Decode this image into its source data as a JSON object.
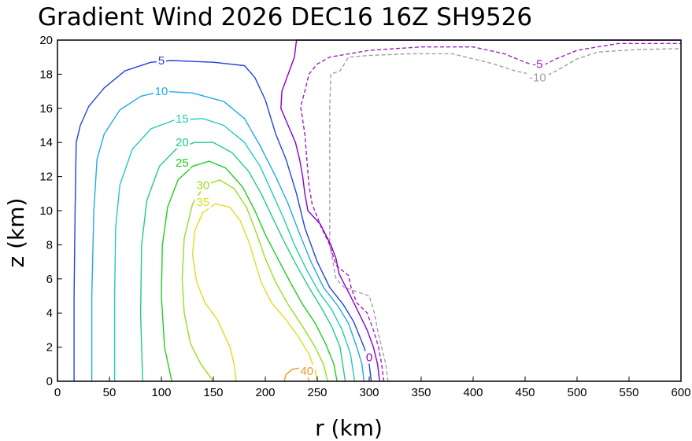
{
  "chart_data": {
    "type": "contour",
    "title": "Gradient Wind 2026 DEC16 16Z  SH9526",
    "xlabel": "r (km)",
    "ylabel": "z (km)",
    "xlim": [
      0,
      600
    ],
    "ylim": [
      0,
      20
    ],
    "xticks": [
      0,
      50,
      100,
      150,
      200,
      250,
      300,
      350,
      400,
      450,
      500,
      550,
      600
    ],
    "yticks": [
      0,
      2,
      4,
      6,
      8,
      10,
      12,
      14,
      16,
      18,
      20
    ],
    "grid": false,
    "legend": "none",
    "contours": [
      {
        "level": -10,
        "label": "-10",
        "color": "#a0a0a0",
        "dashed": true,
        "points": [
          [
            318,
            0
          ],
          [
            316,
            1
          ],
          [
            312,
            2
          ],
          [
            308,
            3
          ],
          [
            305,
            4
          ],
          [
            300,
            5
          ],
          [
            276,
            5.5
          ],
          [
            268,
            6
          ],
          [
            265,
            7
          ],
          [
            262,
            8
          ],
          [
            262,
            10
          ],
          [
            262,
            12
          ],
          [
            262,
            14
          ],
          [
            262,
            16
          ],
          [
            263,
            18
          ],
          [
            272,
            18.2
          ],
          [
            280,
            19
          ],
          [
            300,
            19.1
          ],
          [
            340,
            19.2
          ],
          [
            380,
            19.2
          ],
          [
            400,
            18.9
          ],
          [
            420,
            18.6
          ],
          [
            440,
            18.2
          ],
          [
            455,
            18.0
          ],
          [
            465,
            17.8
          ],
          [
            470,
            17.9
          ],
          [
            480,
            18.2
          ],
          [
            500,
            18.9
          ],
          [
            520,
            19.3
          ],
          [
            560,
            19.45
          ],
          [
            600,
            19.5
          ]
        ]
      },
      {
        "level": -5,
        "label": "-5",
        "color": "#a020c0",
        "dashed": true,
        "points": [
          [
            314,
            0
          ],
          [
            312,
            1
          ],
          [
            309,
            2
          ],
          [
            304,
            3
          ],
          [
            298,
            4
          ],
          [
            288,
            4.6
          ],
          [
            283,
            5.4
          ],
          [
            280,
            6.2
          ],
          [
            268,
            6.8
          ],
          [
            262,
            8
          ],
          [
            254,
            9
          ],
          [
            245,
            10.4
          ],
          [
            242,
            11.5
          ],
          [
            240,
            13
          ],
          [
            238,
            14.5
          ],
          [
            234,
            16.1
          ],
          [
            238,
            17
          ],
          [
            242,
            18
          ],
          [
            250,
            18.6
          ],
          [
            262,
            19.0
          ],
          [
            300,
            19.4
          ],
          [
            350,
            19.6
          ],
          [
            400,
            19.6
          ],
          [
            430,
            19.2
          ],
          [
            450,
            18.7
          ],
          [
            460,
            18.5
          ],
          [
            470,
            18.6
          ],
          [
            480,
            18.9
          ],
          [
            500,
            19.4
          ],
          [
            540,
            19.8
          ],
          [
            600,
            19.8
          ]
        ]
      },
      {
        "level": 0,
        "label": "0",
        "color": "#8800cc",
        "dashed": false,
        "points": [
          [
            310,
            0
          ],
          [
            308,
            1
          ],
          [
            304,
            2
          ],
          [
            298,
            3
          ],
          [
            290,
            4
          ],
          [
            282,
            5
          ],
          [
            276,
            5.7
          ],
          [
            271,
            6.3
          ],
          [
            268,
            7.2
          ],
          [
            263,
            8
          ],
          [
            253,
            9.2
          ],
          [
            241,
            10
          ],
          [
            238,
            11
          ],
          [
            236,
            12
          ],
          [
            233,
            13
          ],
          [
            229,
            14
          ],
          [
            222,
            15
          ],
          [
            215,
            16
          ],
          [
            216,
            17
          ],
          [
            222,
            18
          ],
          [
            228,
            19
          ],
          [
            230,
            20
          ],
          [
            300,
            20
          ],
          [
            400,
            20
          ],
          [
            500,
            20
          ],
          [
            600,
            20
          ]
        ]
      },
      {
        "level": 5,
        "label": "5",
        "color": "#2244dd",
        "dashed": false,
        "points": [
          [
            16,
            0
          ],
          [
            16,
            5
          ],
          [
            17,
            10
          ],
          [
            18,
            14
          ],
          [
            22,
            15
          ],
          [
            30,
            16.1
          ],
          [
            45,
            17.2
          ],
          [
            65,
            18.2
          ],
          [
            90,
            18.7
          ],
          [
            110,
            18.8
          ],
          [
            150,
            18.7
          ],
          [
            180,
            18.5
          ],
          [
            190,
            17.8
          ],
          [
            200,
            16.5
          ],
          [
            210,
            14.5
          ],
          [
            220,
            13
          ],
          [
            230,
            11
          ],
          [
            238,
            9
          ],
          [
            250,
            7
          ],
          [
            262,
            5.5
          ],
          [
            275,
            4.5
          ],
          [
            285,
            3.5
          ],
          [
            295,
            2
          ],
          [
            300,
            1
          ],
          [
            302,
            0
          ]
        ]
      },
      {
        "level": 10,
        "label": "10",
        "color": "#22a8ee",
        "dashed": false,
        "points": [
          [
            33,
            0
          ],
          [
            33,
            5
          ],
          [
            35,
            10
          ],
          [
            38,
            13
          ],
          [
            45,
            14.5
          ],
          [
            60,
            15.9
          ],
          [
            80,
            16.7
          ],
          [
            100,
            17.0
          ],
          [
            130,
            16.9
          ],
          [
            160,
            16.4
          ],
          [
            180,
            15.4
          ],
          [
            195,
            13.8
          ],
          [
            210,
            12
          ],
          [
            222,
            10.4
          ],
          [
            232,
            8.8
          ],
          [
            244,
            7
          ],
          [
            256,
            5.5
          ],
          [
            270,
            4.4
          ],
          [
            280,
            3.4
          ],
          [
            288,
            2
          ],
          [
            293,
            1
          ],
          [
            295,
            0
          ]
        ]
      },
      {
        "level": 15,
        "label": "15",
        "color": "#22ccbb",
        "dashed": false,
        "points": [
          [
            55,
            0
          ],
          [
            55,
            5
          ],
          [
            56,
            9
          ],
          [
            60,
            11.5
          ],
          [
            72,
            13.6
          ],
          [
            90,
            14.8
          ],
          [
            112,
            15.3
          ],
          [
            140,
            15.4
          ],
          [
            160,
            15.0
          ],
          [
            180,
            14.0
          ],
          [
            195,
            12.6
          ],
          [
            207,
            11
          ],
          [
            218,
            9.5
          ],
          [
            228,
            8
          ],
          [
            240,
            6.5
          ],
          [
            252,
            5.2
          ],
          [
            264,
            4.2
          ],
          [
            274,
            3
          ],
          [
            282,
            1.6
          ],
          [
            286,
            0
          ]
        ]
      },
      {
        "level": 20,
        "label": "20",
        "color": "#22cc88",
        "dashed": false,
        "points": [
          [
            82,
            0
          ],
          [
            80,
            4
          ],
          [
            81,
            8
          ],
          [
            86,
            10.6
          ],
          [
            98,
            12.6
          ],
          [
            114,
            13.6
          ],
          [
            132,
            14.0
          ],
          [
            150,
            14.0
          ],
          [
            168,
            13.4
          ],
          [
            184,
            12.3
          ],
          [
            196,
            11
          ],
          [
            207,
            9.6
          ],
          [
            218,
            8.2
          ],
          [
            230,
            6.8
          ],
          [
            242,
            5.5
          ],
          [
            254,
            4.3
          ],
          [
            264,
            3.2
          ],
          [
            272,
            2
          ],
          [
            277,
            0
          ]
        ]
      },
      {
        "level": 25,
        "label": "25",
        "color": "#22cc22",
        "dashed": false,
        "points": [
          [
            110,
            0
          ],
          [
            103,
            2
          ],
          [
            100,
            5
          ],
          [
            101,
            8
          ],
          [
            106,
            10.2
          ],
          [
            116,
            11.8
          ],
          [
            130,
            12.6
          ],
          [
            146,
            12.9
          ],
          [
            162,
            12.5
          ],
          [
            178,
            11.4
          ],
          [
            190,
            10
          ],
          [
            200,
            8.6
          ],
          [
            212,
            7.2
          ],
          [
            224,
            5.8
          ],
          [
            236,
            4.5
          ],
          [
            248,
            3.4
          ],
          [
            258,
            2.2
          ],
          [
            266,
            1
          ],
          [
            269,
            0
          ]
        ]
      },
      {
        "level": 30,
        "label": "30",
        "color": "#99dd22",
        "dashed": false,
        "points": [
          [
            150,
            0
          ],
          [
            138,
            1
          ],
          [
            128,
            2.2
          ],
          [
            122,
            4
          ],
          [
            120,
            6
          ],
          [
            122,
            8.4
          ],
          [
            130,
            10.4
          ],
          [
            142,
            11.5
          ],
          [
            156,
            11.8
          ],
          [
            170,
            11.3
          ],
          [
            182,
            10.2
          ],
          [
            192,
            8.6
          ],
          [
            200,
            7.2
          ],
          [
            210,
            5.8
          ],
          [
            222,
            4.5
          ],
          [
            236,
            3.2
          ],
          [
            248,
            2
          ],
          [
            256,
            1
          ],
          [
            260,
            0
          ]
        ]
      },
      {
        "level": 35,
        "label": "35",
        "color": "#dddd22",
        "dashed": false,
        "points": [
          [
            172,
            0
          ],
          [
            170,
            1
          ],
          [
            166,
            2
          ],
          [
            154,
            3.6
          ],
          [
            142,
            4.6
          ],
          [
            134,
            5.8
          ],
          [
            130,
            7.4
          ],
          [
            132,
            8.8
          ],
          [
            140,
            9.9
          ],
          [
            152,
            10.4
          ],
          [
            166,
            10.2
          ],
          [
            176,
            9.4
          ],
          [
            184,
            8.2
          ],
          [
            190,
            7
          ],
          [
            196,
            5.8
          ],
          [
            206,
            4.6
          ],
          [
            220,
            3.6
          ],
          [
            232,
            2.6
          ],
          [
            242,
            1.6
          ],
          [
            248,
            0.6
          ],
          [
            250,
            0
          ]
        ]
      },
      {
        "level": 40,
        "label": "40",
        "color": "#ee9922",
        "dashed": false,
        "points": [
          [
            218,
            0
          ],
          [
            220,
            0.4
          ],
          [
            226,
            0.7
          ],
          [
            235,
            0.8
          ],
          [
            240,
            0.5
          ],
          [
            242,
            0
          ]
        ]
      }
    ],
    "contour_labels": [
      {
        "text": "5",
        "x": 100,
        "y": 18.8,
        "color": "#2244dd"
      },
      {
        "text": "10",
        "x": 100,
        "y": 17.0,
        "color": "#22a8ee"
      },
      {
        "text": "15",
        "x": 120,
        "y": 15.4,
        "color": "#22ccbb"
      },
      {
        "text": "20",
        "x": 120,
        "y": 14.0,
        "color": "#22cc88"
      },
      {
        "text": "25",
        "x": 120,
        "y": 12.8,
        "color": "#22cc22"
      },
      {
        "text": "30",
        "x": 140,
        "y": 11.5,
        "color": "#99dd22"
      },
      {
        "text": "35",
        "x": 140,
        "y": 10.5,
        "color": "#dddd22"
      },
      {
        "text": "40",
        "x": 240,
        "y": 0.6,
        "color": "#ee9922"
      },
      {
        "text": "0",
        "x": 300,
        "y": 1.4,
        "color": "#8800cc"
      },
      {
        "text": "-5",
        "x": 462,
        "y": 18.6,
        "color": "#a020c0"
      },
      {
        "text": "-10",
        "x": 462,
        "y": 17.8,
        "color": "#a0a0a0"
      }
    ]
  }
}
